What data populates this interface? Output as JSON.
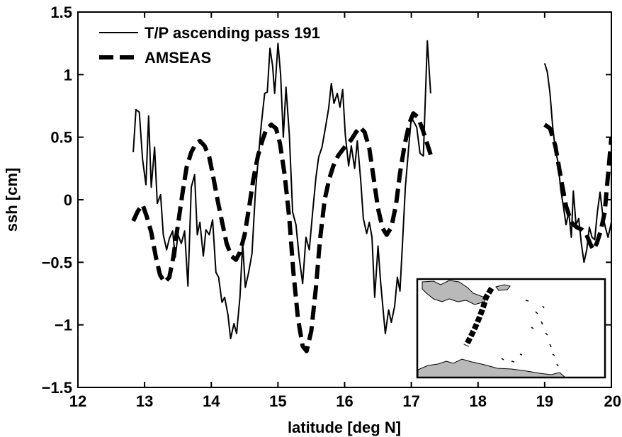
{
  "chart_data": {
    "type": "line",
    "title": "",
    "xlabel": "latitude [deg N]",
    "ylabel": "ssh [cm]",
    "xlim": [
      12,
      20
    ],
    "ylim": [
      -1.5,
      1.5
    ],
    "xticks": [
      12,
      13,
      14,
      15,
      16,
      17,
      18,
      19,
      20
    ],
    "xtick_labels": [
      "12",
      "13",
      "14",
      "15",
      "16",
      "17",
      "18",
      "19",
      "20"
    ],
    "yticks": [
      -1.5,
      -1,
      -0.5,
      0,
      0.5,
      1,
      1.5
    ],
    "ytick_labels": [
      "−1.5",
      "−1",
      "−0.5",
      "0",
      "0.5",
      "1",
      "1.5"
    ],
    "grid": false,
    "legend_position": "top-left",
    "inset": "map",
    "series": [
      {
        "name": "T/P ascending pass 191",
        "style": "solid",
        "color": "#000000",
        "segments": [
          [
            [
              12.83,
              0.38
            ],
            [
              12.87,
              0.72
            ],
            [
              12.92,
              0.7
            ],
            [
              12.97,
              0.32
            ],
            [
              13.02,
              0.12
            ],
            [
              13.06,
              0.67
            ],
            [
              13.1,
              0.1
            ],
            [
              13.15,
              0.42
            ],
            [
              13.19,
              -0.03
            ],
            [
              13.24,
              0.04
            ],
            [
              13.28,
              -0.28
            ],
            [
              13.33,
              -0.4
            ],
            [
              13.37,
              -0.31
            ],
            [
              13.42,
              -0.25
            ],
            [
              13.46,
              -0.46
            ],
            [
              13.5,
              -0.28
            ],
            [
              13.55,
              -0.35
            ],
            [
              13.6,
              -0.25
            ],
            [
              13.65,
              -0.69
            ],
            [
              13.7,
              0.1
            ],
            [
              13.75,
              0.2
            ],
            [
              13.79,
              -0.28
            ],
            [
              13.83,
              -0.18
            ],
            [
              13.88,
              -0.45
            ],
            [
              13.92,
              -0.24
            ],
            [
              13.97,
              -0.28
            ],
            [
              14.02,
              -0.16
            ],
            [
              14.07,
              -0.58
            ],
            [
              14.11,
              -0.62
            ],
            [
              14.16,
              -0.82
            ],
            [
              14.2,
              -0.78
            ],
            [
              14.25,
              -0.92
            ],
            [
              14.29,
              -1.11
            ],
            [
              14.34,
              -0.99
            ],
            [
              14.38,
              -1.07
            ],
            [
              14.43,
              -0.78
            ],
            [
              14.47,
              -0.35
            ],
            [
              14.51,
              -0.7
            ],
            [
              14.56,
              -0.58
            ],
            [
              14.61,
              -0.43
            ],
            [
              14.66,
              0.05
            ],
            [
              14.7,
              0.3
            ],
            [
              14.75,
              0.6
            ],
            [
              14.8,
              0.85
            ],
            [
              14.84,
              0.86
            ],
            [
              14.88,
              1.21
            ],
            [
              14.92,
              1.07
            ],
            [
              14.95,
              0.85
            ],
            [
              15.0,
              1.25
            ],
            [
              15.04,
              1.0
            ],
            [
              15.08,
              0.5
            ],
            [
              15.12,
              0.9
            ],
            [
              15.17,
              0.52
            ],
            [
              15.22,
              -0.1
            ],
            [
              15.27,
              -0.2
            ],
            [
              15.32,
              -0.47
            ],
            [
              15.37,
              -0.67
            ],
            [
              15.42,
              -0.3
            ],
            [
              15.47,
              -0.4
            ],
            [
              15.52,
              -0.1
            ],
            [
              15.57,
              0.18
            ],
            [
              15.61,
              0.34
            ],
            [
              15.66,
              0.42
            ],
            [
              15.71,
              0.57
            ],
            [
              15.76,
              0.73
            ],
            [
              15.8,
              0.93
            ],
            [
              15.84,
              0.77
            ],
            [
              15.89,
              0.85
            ],
            [
              15.93,
              0.74
            ],
            [
              15.97,
              0.88
            ],
            [
              16.01,
              0.52
            ],
            [
              16.06,
              0.27
            ],
            [
              16.1,
              0.43
            ],
            [
              16.15,
              0.25
            ],
            [
              16.19,
              0.47
            ],
            [
              16.24,
              0.16
            ],
            [
              16.28,
              -0.15
            ],
            [
              16.33,
              -0.27
            ],
            [
              16.37,
              -0.18
            ],
            [
              16.41,
              -0.3
            ],
            [
              16.45,
              -0.78
            ],
            [
              16.5,
              -0.37
            ],
            [
              16.54,
              -0.66
            ],
            [
              16.58,
              -0.9
            ],
            [
              16.61,
              -1.07
            ],
            [
              16.66,
              -0.88
            ],
            [
              16.7,
              -0.98
            ],
            [
              16.75,
              -0.85
            ],
            [
              16.79,
              -0.62
            ],
            [
              16.83,
              -0.73
            ],
            [
              16.87,
              -0.32
            ],
            [
              16.91,
              0.1
            ],
            [
              16.96,
              0.42
            ],
            [
              17.0,
              0.66
            ],
            [
              17.04,
              0.62
            ],
            [
              17.08,
              0.58
            ],
            [
              17.13,
              0.37
            ],
            [
              17.18,
              0.35
            ],
            [
              17.24,
              1.27
            ],
            [
              17.29,
              0.85
            ]
          ],
          [
            [
              19.0,
              1.09
            ],
            [
              19.04,
              1.02
            ],
            [
              19.08,
              0.85
            ],
            [
              19.12,
              0.58
            ],
            [
              19.16,
              0.4
            ],
            [
              19.2,
              0.3
            ],
            [
              19.24,
              0.08
            ],
            [
              19.28,
              -0.05
            ],
            [
              19.32,
              -0.2
            ],
            [
              19.36,
              -0.1
            ],
            [
              19.4,
              -0.3
            ],
            [
              19.43,
              0.07
            ],
            [
              19.47,
              -0.2
            ],
            [
              19.51,
              -0.15
            ],
            [
              19.55,
              -0.35
            ],
            [
              19.59,
              -0.5
            ],
            [
              19.63,
              -0.4
            ],
            [
              19.67,
              -0.22
            ],
            [
              19.71,
              -0.3
            ],
            [
              19.75,
              -0.32
            ],
            [
              19.79,
              -0.1
            ],
            [
              19.83,
              0.06
            ],
            [
              19.87,
              -0.12
            ],
            [
              19.91,
              -0.22
            ],
            [
              19.95,
              -0.3
            ],
            [
              20.0,
              -0.18
            ]
          ]
        ]
      },
      {
        "name": "AMSEAS",
        "style": "dashed",
        "color": "#000000",
        "segments": [
          [
            [
              12.83,
              -0.17
            ],
            [
              12.9,
              -0.09
            ],
            [
              12.97,
              -0.04
            ],
            [
              13.03,
              -0.13
            ],
            [
              13.1,
              -0.26
            ],
            [
              13.17,
              -0.46
            ],
            [
              13.23,
              -0.6
            ],
            [
              13.3,
              -0.66
            ],
            [
              13.37,
              -0.62
            ],
            [
              13.43,
              -0.46
            ],
            [
              13.5,
              -0.2
            ],
            [
              13.57,
              0.06
            ],
            [
              13.63,
              0.26
            ],
            [
              13.7,
              0.38
            ],
            [
              13.77,
              0.45
            ],
            [
              13.83,
              0.47
            ],
            [
              13.9,
              0.43
            ],
            [
              13.97,
              0.34
            ],
            [
              14.03,
              0.18
            ],
            [
              14.1,
              -0.02
            ],
            [
              14.17,
              -0.2
            ],
            [
              14.23,
              -0.35
            ],
            [
              14.3,
              -0.45
            ],
            [
              14.37,
              -0.48
            ],
            [
              14.43,
              -0.42
            ],
            [
              14.5,
              -0.28
            ],
            [
              14.57,
              -0.05
            ],
            [
              14.63,
              0.16
            ],
            [
              14.7,
              0.35
            ],
            [
              14.77,
              0.48
            ],
            [
              14.83,
              0.57
            ],
            [
              14.9,
              0.6
            ],
            [
              14.97,
              0.57
            ],
            [
              15.03,
              0.45
            ],
            [
              15.1,
              0.2
            ],
            [
              15.17,
              -0.15
            ],
            [
              15.23,
              -0.57
            ],
            [
              15.3,
              -0.95
            ],
            [
              15.37,
              -1.17
            ],
            [
              15.43,
              -1.21
            ],
            [
              15.5,
              -1.05
            ],
            [
              15.57,
              -0.7
            ],
            [
              15.63,
              -0.32
            ],
            [
              15.7,
              0.0
            ],
            [
              15.77,
              0.17
            ],
            [
              15.83,
              0.27
            ],
            [
              15.9,
              0.35
            ],
            [
              15.97,
              0.4
            ],
            [
              16.03,
              0.44
            ],
            [
              16.1,
              0.48
            ],
            [
              16.17,
              0.54
            ],
            [
              16.23,
              0.58
            ],
            [
              16.3,
              0.54
            ],
            [
              16.37,
              0.41
            ],
            [
              16.43,
              0.19
            ],
            [
              16.5,
              -0.07
            ],
            [
              16.57,
              -0.23
            ],
            [
              16.63,
              -0.28
            ],
            [
              16.7,
              -0.22
            ],
            [
              16.77,
              -0.04
            ],
            [
              16.83,
              0.21
            ],
            [
              16.9,
              0.44
            ],
            [
              16.97,
              0.61
            ],
            [
              17.03,
              0.69
            ],
            [
              17.1,
              0.66
            ],
            [
              17.17,
              0.56
            ],
            [
              17.23,
              0.46
            ],
            [
              17.29,
              0.36
            ]
          ],
          [
            [
              19.0,
              0.6
            ],
            [
              19.08,
              0.57
            ],
            [
              19.16,
              0.43
            ],
            [
              19.24,
              0.18
            ],
            [
              19.32,
              -0.05
            ],
            [
              19.4,
              -0.18
            ],
            [
              19.48,
              -0.22
            ],
            [
              19.56,
              -0.24
            ],
            [
              19.62,
              -0.27
            ],
            [
              19.68,
              -0.35
            ],
            [
              19.73,
              -0.4
            ],
            [
              19.78,
              -0.35
            ],
            [
              19.84,
              -0.25
            ],
            [
              19.9,
              -0.1
            ],
            [
              19.95,
              0.2
            ],
            [
              20.0,
              0.5
            ]
          ]
        ]
      }
    ]
  }
}
